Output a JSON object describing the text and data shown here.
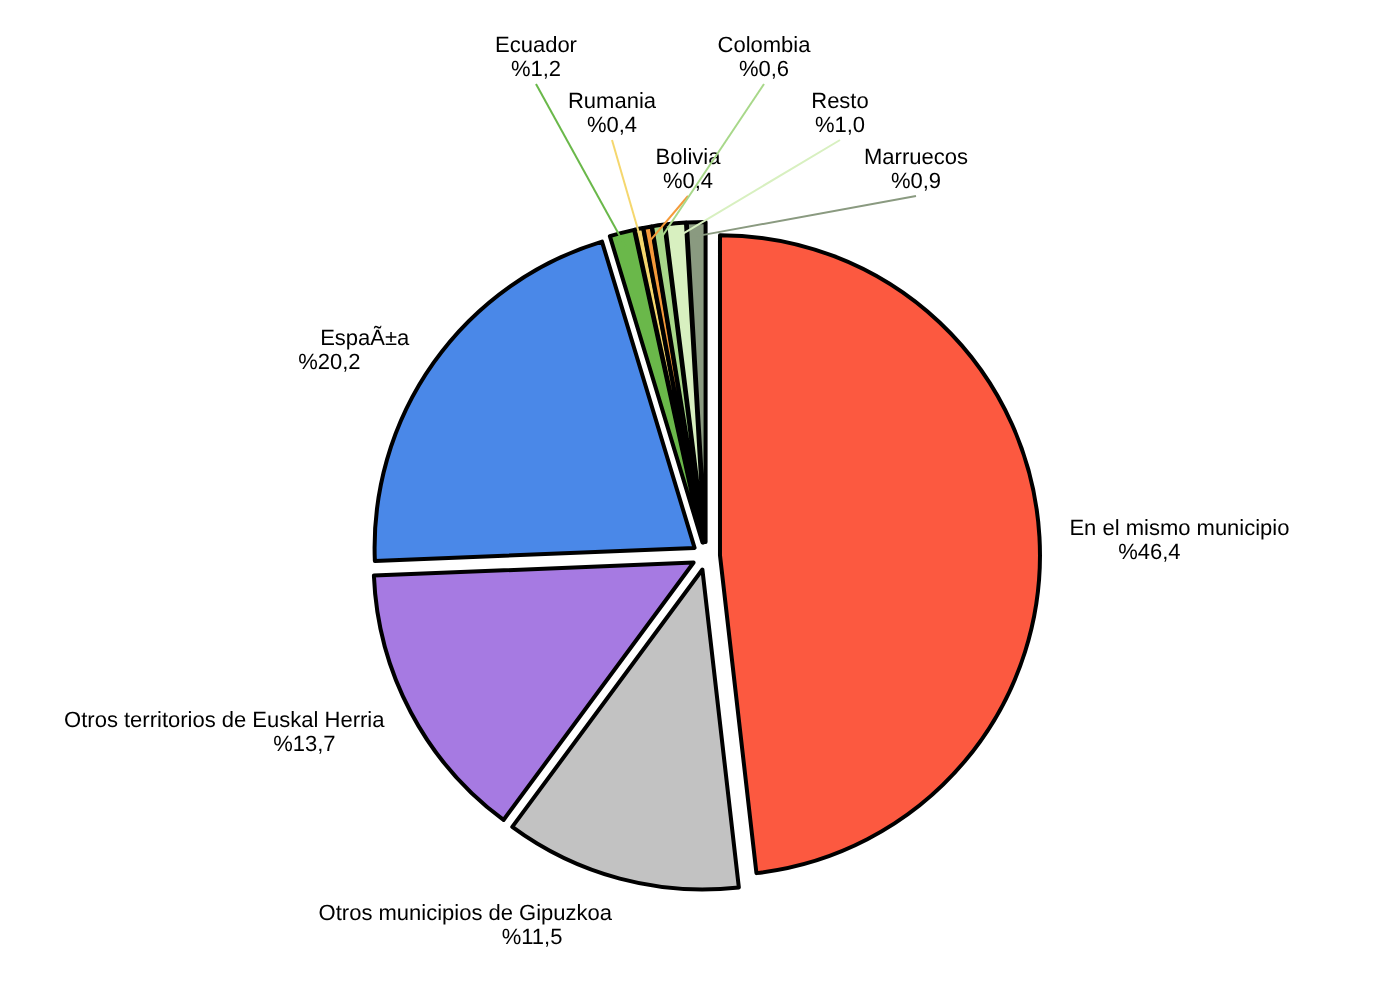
{
  "chart_data": {
    "type": "pie",
    "categories": [
      "En el mismo municipio",
      "Otros municipios de Gipuzkoa",
      "Otros territorios de Euskal Herria",
      "EspaÃ±a",
      "Ecuador",
      "Rumania",
      "Bolivia",
      "Colombia",
      "Resto",
      "Marruecos"
    ],
    "values": [
      46.4,
      11.5,
      13.7,
      20.2,
      1.2,
      0.4,
      0.4,
      0.6,
      1.0,
      0.9
    ],
    "value_labels": [
      "%46,4",
      "%11,5",
      "%13,7",
      "%20,2",
      "%1,2",
      "%0,4",
      "%0,4",
      "%0,6",
      "%1,0",
      "%0,9"
    ],
    "colors": [
      "#fc5940",
      "#c2c2c2",
      "#a67ae2",
      "#4a88e8",
      "#6ab84a",
      "#f5d76e",
      "#f59a3a",
      "#a8d88a",
      "#d8f0c0",
      "#8a9a80"
    ],
    "legend": false
  }
}
